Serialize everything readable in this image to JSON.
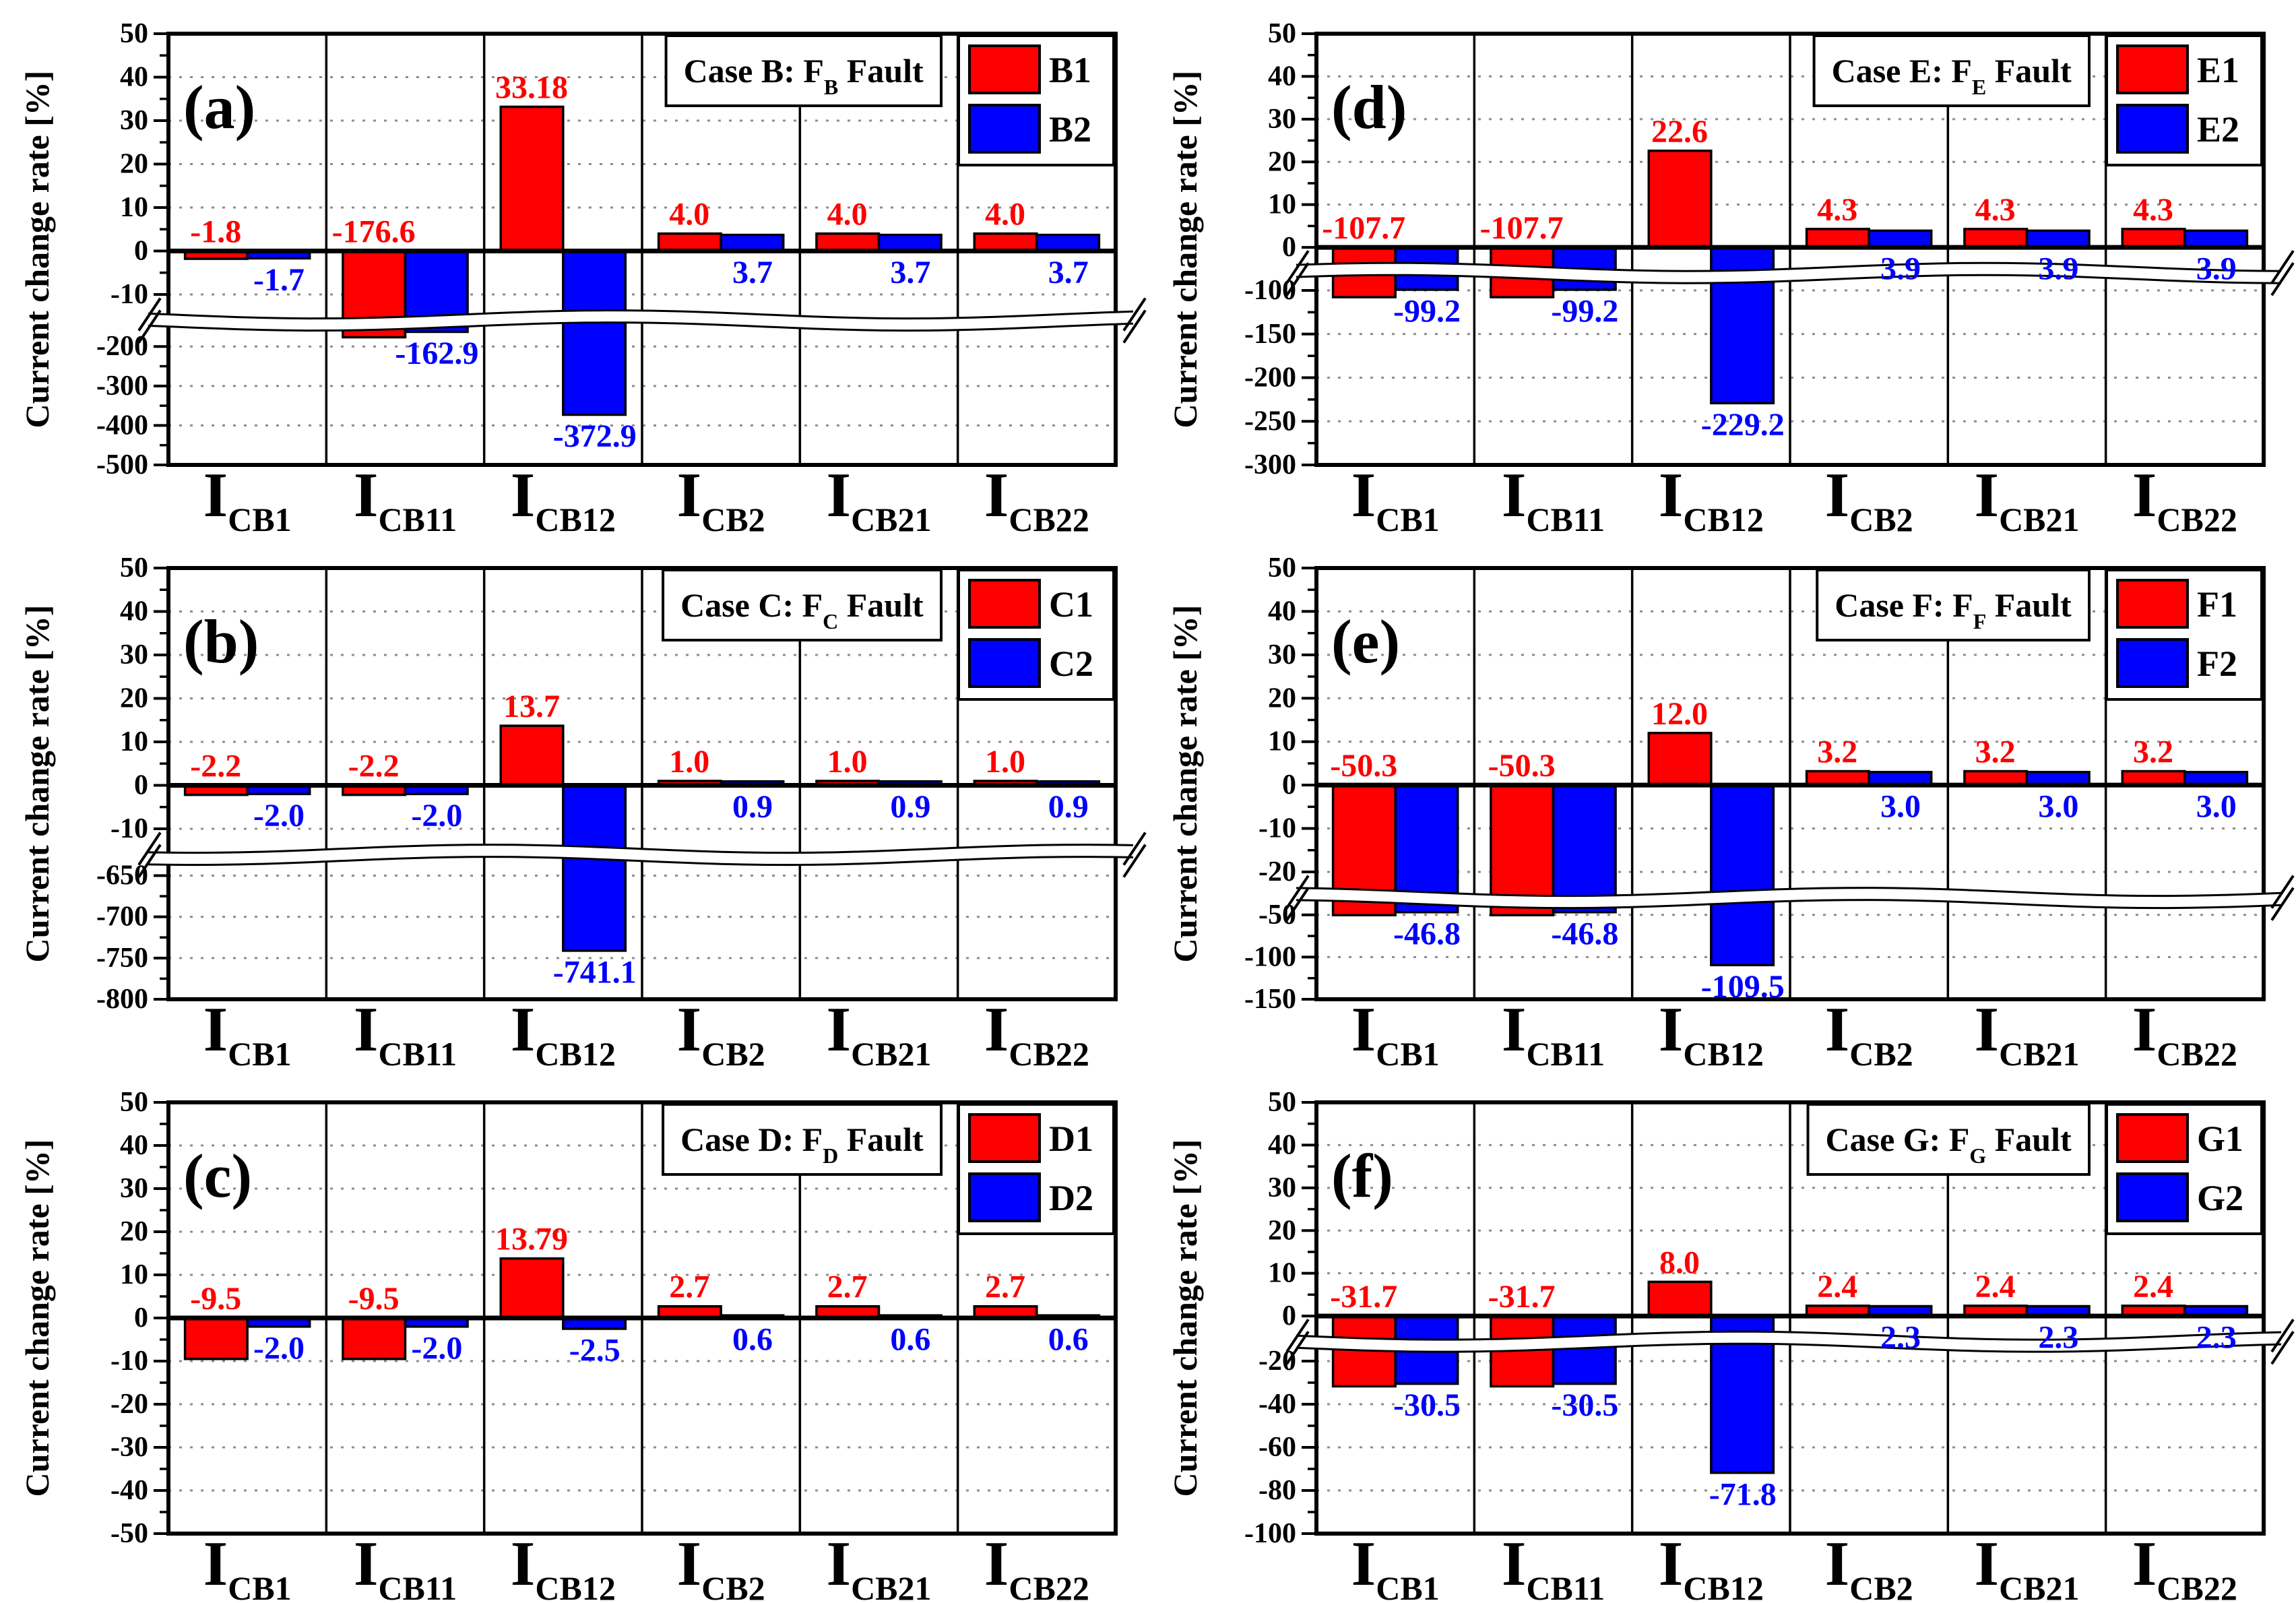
{
  "figure": {
    "background": "#ffffff",
    "ylabel": "Current change rate [%]",
    "colors": {
      "series1": "#ff0000",
      "series2": "#0000ff",
      "grid": "#8c8c8c",
      "axis": "#000000"
    },
    "categories": [
      {
        "main": "I",
        "sub": "CB1"
      },
      {
        "main": "I",
        "sub": "CB11"
      },
      {
        "main": "I",
        "sub": "CB12"
      },
      {
        "main": "I",
        "sub": "CB2"
      },
      {
        "main": "I",
        "sub": "CB21"
      },
      {
        "main": "I",
        "sub": "CB22"
      }
    ]
  },
  "chart_data": [
    {
      "type": "bar",
      "panel": "(a)",
      "title": "Case B: F_B Fault",
      "title_rich": {
        "prefix": "Case B: F",
        "sub": "B",
        "suffix": " Fault"
      },
      "ylabel": "Current change rate [%]",
      "categories": [
        "I_CB1",
        "I_CB11",
        "I_CB12",
        "I_CB2",
        "I_CB21",
        "I_CB22"
      ],
      "legend_position": "top-right",
      "series": [
        {
          "name": "B1",
          "color": "#ff0000",
          "values": [
            -1.8,
            -176.6,
            33.18,
            4.0,
            4.0,
            4.0
          ],
          "labels": [
            "-1.8",
            "-176.6",
            "33.18",
            "4.0",
            "4.0",
            "4.0"
          ]
        },
        {
          "name": "B2",
          "color": "#0000ff",
          "values": [
            -1.7,
            -162.9,
            -372.9,
            3.7,
            3.7,
            3.7
          ],
          "labels": [
            "-1.7",
            "-162.9",
            "-372.9",
            "3.7",
            "3.7",
            "3.7"
          ]
        }
      ],
      "y_axis": {
        "broken": true,
        "gap_frac": 0.02,
        "segments": [
          {
            "max": 50,
            "min": -15,
            "frac": 0.655,
            "ticks": [
              50,
              40,
              30,
              20,
              10,
              0,
              -10
            ]
          },
          {
            "max": -145,
            "min": -500,
            "frac": 0.325,
            "ticks": [
              -200,
              -300,
              -400,
              -500
            ]
          }
        ]
      }
    },
    {
      "type": "bar",
      "panel": "(b)",
      "title": "Case C: F_C Fault",
      "title_rich": {
        "prefix": "Case C: F",
        "sub": "C",
        "suffix": " Fault"
      },
      "ylabel": "Current change rate [%]",
      "categories": [
        "I_CB1",
        "I_CB11",
        "I_CB12",
        "I_CB2",
        "I_CB21",
        "I_CB22"
      ],
      "legend_position": "top-right",
      "series": [
        {
          "name": "C1",
          "color": "#ff0000",
          "values": [
            -2.2,
            -2.2,
            13.7,
            1.0,
            1.0,
            1.0
          ],
          "labels": [
            "-2.2",
            "-2.2",
            "13.7",
            "1.0",
            "1.0",
            "1.0"
          ]
        },
        {
          "name": "C2",
          "color": "#0000ff",
          "values": [
            -2.0,
            -2.0,
            -741.1,
            0.9,
            0.9,
            0.9
          ],
          "labels": [
            "-2.0",
            "-2.0",
            "-741.1",
            "0.9",
            "0.9",
            "0.9"
          ]
        }
      ],
      "y_axis": {
        "broken": true,
        "gap_frac": 0.02,
        "segments": [
          {
            "max": 50,
            "min": -15,
            "frac": 0.655,
            "ticks": [
              50,
              40,
              30,
              20,
              10,
              0,
              -10
            ]
          },
          {
            "max": -630,
            "min": -800,
            "frac": 0.325,
            "ticks": [
              -650,
              -700,
              -750,
              -800
            ]
          }
        ]
      }
    },
    {
      "type": "bar",
      "panel": "(c)",
      "title": "Case D: F_D Fault",
      "title_rich": {
        "prefix": "Case D: F",
        "sub": "D",
        "suffix": " Fault"
      },
      "ylabel": "Current change rate [%]",
      "categories": [
        "I_CB1",
        "I_CB11",
        "I_CB12",
        "I_CB2",
        "I_CB21",
        "I_CB22"
      ],
      "legend_position": "top-right",
      "series": [
        {
          "name": "D1",
          "color": "#ff0000",
          "values": [
            -9.5,
            -9.5,
            13.79,
            2.7,
            2.7,
            2.7
          ],
          "labels": [
            "-9.5",
            "-9.5",
            "13.79",
            "2.7",
            "2.7",
            "2.7"
          ]
        },
        {
          "name": "D2",
          "color": "#0000ff",
          "values": [
            -2.0,
            -2.0,
            -2.5,
            0.6,
            0.6,
            0.6
          ],
          "labels": [
            "-2.0",
            "-2.0",
            "-2.5",
            "0.6",
            "0.6",
            "0.6"
          ]
        }
      ],
      "y_axis": {
        "broken": false,
        "gap_frac": 0,
        "segments": [
          {
            "max": 50,
            "min": -50,
            "frac": 1.0,
            "ticks": [
              50,
              40,
              30,
              20,
              10,
              0,
              -10,
              -20,
              -30,
              -40,
              -50
            ]
          }
        ]
      }
    },
    {
      "type": "bar",
      "panel": "(d)",
      "title": "Case E: F_E Fault",
      "title_rich": {
        "prefix": "Case E: F",
        "sub": "E",
        "suffix": " Fault"
      },
      "ylabel": "Current change rate [%]",
      "categories": [
        "I_CB1",
        "I_CB11",
        "I_CB12",
        "I_CB2",
        "I_CB21",
        "I_CB22"
      ],
      "legend_position": "top-right",
      "series": [
        {
          "name": "E1",
          "color": "#ff0000",
          "values": [
            -107.7,
            -107.7,
            22.6,
            4.3,
            4.3,
            4.3
          ],
          "labels": [
            "-107.7",
            "-107.7",
            "22.6",
            "4.3",
            "4.3",
            "4.3"
          ]
        },
        {
          "name": "E2",
          "color": "#0000ff",
          "values": [
            -99.2,
            -99.2,
            -229.2,
            3.9,
            3.9,
            3.9
          ],
          "labels": [
            "-99.2",
            "-99.2",
            "-229.2",
            "3.9",
            "3.9",
            "3.9"
          ]
        }
      ],
      "y_axis": {
        "broken": true,
        "gap_frac": 0.02,
        "segments": [
          {
            "max": 50,
            "min": -5,
            "frac": 0.545,
            "ticks": [
              50,
              40,
              30,
              20,
              10,
              0
            ]
          },
          {
            "max": -85,
            "min": -300,
            "frac": 0.435,
            "ticks": [
              -100,
              -150,
              -200,
              -250,
              -300
            ]
          }
        ]
      }
    },
    {
      "type": "bar",
      "panel": "(e)",
      "title": "Case F: F_F Fault",
      "title_rich": {
        "prefix": "Case F: F",
        "sub": "F",
        "suffix": " Fault"
      },
      "ylabel": "Current change rate [%]",
      "categories": [
        "I_CB1",
        "I_CB11",
        "I_CB12",
        "I_CB2",
        "I_CB21",
        "I_CB22"
      ],
      "legend_position": "top-right",
      "series": [
        {
          "name": "F1",
          "color": "#ff0000",
          "values": [
            -50.3,
            -50.3,
            12.0,
            3.2,
            3.2,
            3.2
          ],
          "labels": [
            "-50.3",
            "-50.3",
            "12.0",
            "3.2",
            "3.2",
            "3.2"
          ]
        },
        {
          "name": "F2",
          "color": "#0000ff",
          "values": [
            -46.8,
            -46.8,
            -109.5,
            3.0,
            3.0,
            3.0
          ],
          "labels": [
            "-46.8",
            "-46.8",
            "-109.5",
            "3.0",
            "3.0",
            "3.0"
          ]
        }
      ],
      "y_axis": {
        "broken": true,
        "gap_frac": 0.02,
        "segments": [
          {
            "max": 50,
            "min": -25,
            "frac": 0.755,
            "ticks": [
              50,
              40,
              30,
              20,
              10,
              0,
              -10,
              -20
            ]
          },
          {
            "max": -35,
            "min": -150,
            "frac": 0.225,
            "ticks": [
              -50,
              -100,
              -150
            ]
          }
        ]
      }
    },
    {
      "type": "bar",
      "panel": "(f)",
      "title": "Case G: F_G Fault",
      "title_rich": {
        "prefix": "Case G: F",
        "sub": "G",
        "suffix": " Fault"
      },
      "ylabel": "Current change rate [%]",
      "categories": [
        "I_CB1",
        "I_CB11",
        "I_CB12",
        "I_CB2",
        "I_CB21",
        "I_CB22"
      ],
      "legend_position": "top-right",
      "series": [
        {
          "name": "G1",
          "color": "#ff0000",
          "values": [
            -31.7,
            -31.7,
            8.0,
            2.4,
            2.4,
            2.4
          ],
          "labels": [
            "-31.7",
            "-31.7",
            "8.0",
            "2.4",
            "2.4",
            "2.4"
          ]
        },
        {
          "name": "G2",
          "color": "#0000ff",
          "values": [
            -30.5,
            -30.5,
            -71.8,
            2.3,
            2.3,
            2.3
          ],
          "labels": [
            "-30.5",
            "-30.5",
            "-71.8",
            "2.3",
            "2.3",
            "2.3"
          ]
        }
      ],
      "y_axis": {
        "broken": true,
        "gap_frac": 0.02,
        "segments": [
          {
            "max": 50,
            "min": -5,
            "frac": 0.545,
            "ticks": [
              50,
              40,
              30,
              20,
              10,
              0
            ]
          },
          {
            "max": -13,
            "min": -100,
            "frac": 0.435,
            "ticks": [
              -20,
              -40,
              -60,
              -80,
              -100
            ]
          }
        ]
      }
    }
  ]
}
